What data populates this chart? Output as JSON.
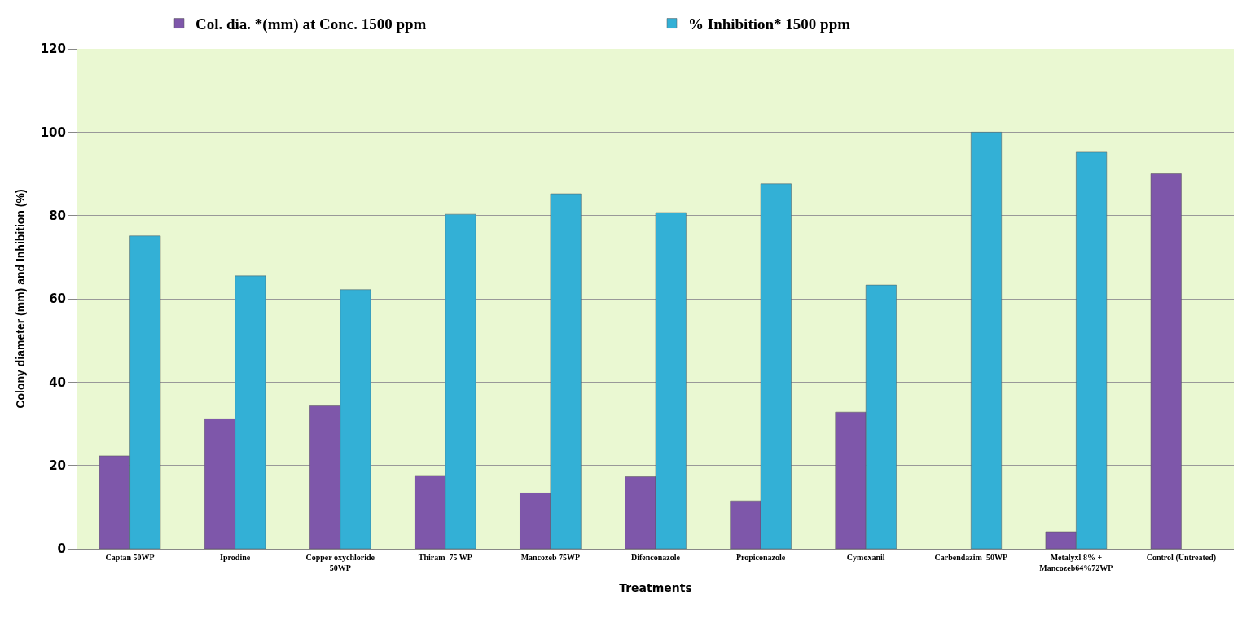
{
  "chart_data": {
    "type": "bar",
    "xlabel": "Treatments",
    "ylabel": "Colony diameter (mm) and Inhibition (%)",
    "categories": [
      "Captan 50WP",
      "Iprodine",
      "Copper oxychloride\n50WP",
      "Thiram  75 WP",
      "Mancozeb 75WP",
      "Difenconazole",
      "Propiconazole",
      "Cymoxanil",
      "Carbendazim  50WP",
      "Metalyxl 8% +\nMancozeb64%72WP",
      "Control (Untreated)"
    ],
    "series": [
      {
        "name": "Col. dia. *(mm) at Conc. 1500 ppm",
        "color": "#7e57aa",
        "values": [
          22.3,
          31.2,
          34.3,
          17.6,
          13.4,
          17.3,
          11.5,
          32.8,
          null,
          4.1,
          90
        ]
      },
      {
        "name": "% Inhibition* 1500 ppm",
        "color": "#33b0d6",
        "values": [
          75.1,
          65.5,
          62.2,
          80.3,
          85.2,
          80.7,
          87.6,
          63.3,
          100,
          95.2,
          null
        ]
      }
    ],
    "ylim": [
      0,
      120
    ],
    "yticks": [
      0,
      20,
      40,
      60,
      80,
      100,
      120
    ],
    "grid": "y",
    "legend": "top"
  }
}
